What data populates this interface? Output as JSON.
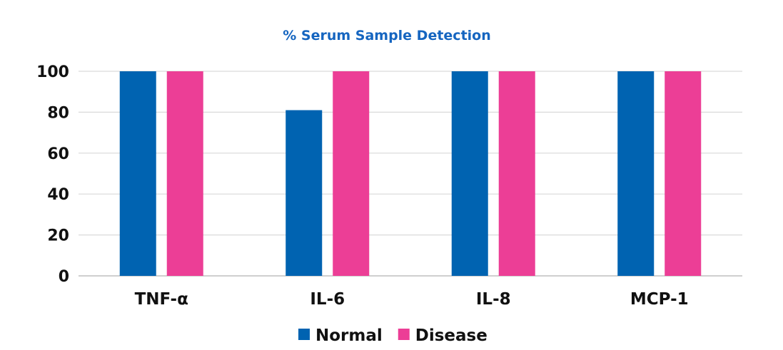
{
  "colors": {
    "title": "#1565c0",
    "normal": "#0063b1",
    "disease": "#ec3e96",
    "grid": "#d9d9d9",
    "axis": "#bfbfbf"
  },
  "chart_data": {
    "type": "bar",
    "title": "% Serum Sample Detection",
    "xlabel": "",
    "ylabel": "",
    "categories": [
      "TNF-α",
      "IL-6",
      "IL-8",
      "MCP-1"
    ],
    "series": [
      {
        "name": "Normal",
        "color_key": "normal",
        "values": [
          100,
          81,
          100,
          100
        ]
      },
      {
        "name": "Disease",
        "color_key": "disease",
        "values": [
          100,
          100,
          100,
          100
        ]
      }
    ],
    "ylim": [
      0,
      100
    ],
    "yticks": [
      0,
      20,
      40,
      60,
      80,
      100
    ],
    "grid": true,
    "legend_position": "bottom"
  }
}
